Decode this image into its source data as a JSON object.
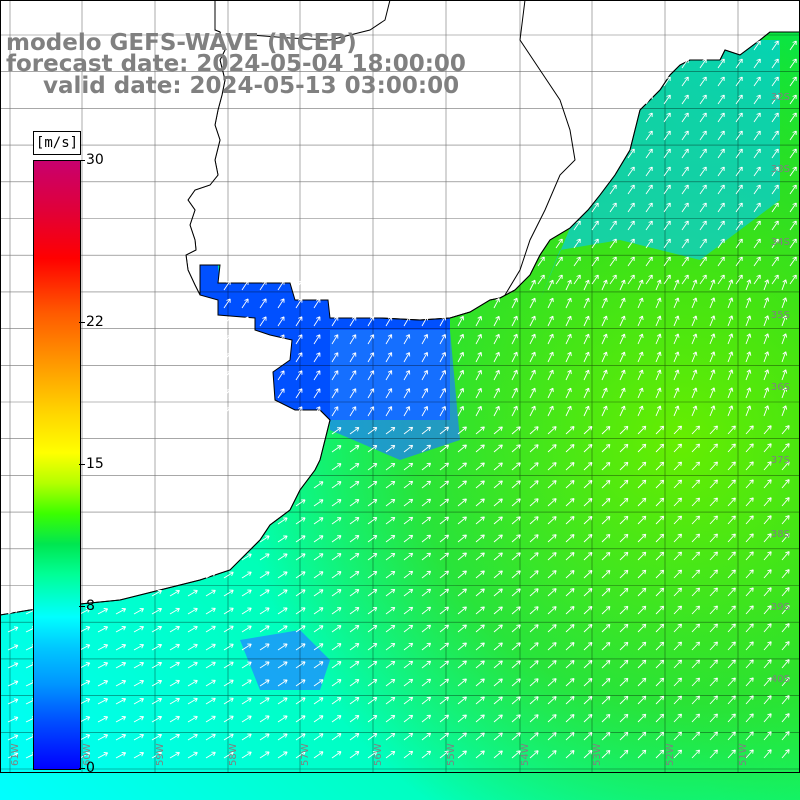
{
  "titles": {
    "model": "modelo GEFS-WAVE (NCEP)",
    "forecast": "forecast date: 2024-05-04 18:00:00",
    "valid": "valid date: 2024-05-13 03:00:00"
  },
  "colorbar": {
    "unit": "[m/s]",
    "ticks": [
      {
        "label": "30",
        "value": 30
      },
      {
        "label": "22",
        "value": 22
      },
      {
        "label": "15",
        "value": 15
      },
      {
        "label": "8",
        "value": 8
      },
      {
        "label": "0",
        "value": 0
      }
    ],
    "range": [
      0,
      30
    ]
  },
  "map": {
    "grid_labels_right": [
      "32S",
      "33S",
      "34S",
      "35S",
      "36S",
      "37S",
      "38S",
      "39S",
      "40S"
    ],
    "grid_labels_bottom": [
      "61W",
      "60W",
      "59W",
      "58W",
      "57W",
      "56W",
      "55W",
      "54W",
      "53W",
      "52W",
      "51W"
    ],
    "variable": "wind speed",
    "colors": {
      "land": "#ffffff",
      "coast": "#000000",
      "grid": "#000000",
      "arrows": "#ffffff",
      "text": "#808080"
    }
  }
}
